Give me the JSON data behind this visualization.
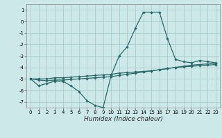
{
  "xlabel": "Humidex (Indice chaleur)",
  "xlim": [
    -0.5,
    23.5
  ],
  "ylim": [
    -7.5,
    1.5
  ],
  "yticks": [
    1,
    0,
    -1,
    -2,
    -3,
    -4,
    -5,
    -6,
    -7
  ],
  "xticks": [
    0,
    1,
    2,
    3,
    4,
    5,
    6,
    7,
    8,
    9,
    10,
    11,
    12,
    13,
    14,
    15,
    16,
    17,
    18,
    19,
    20,
    21,
    22,
    23
  ],
  "bg_color": "#cce8e8",
  "grid_color": "#aacccc",
  "line_color": "#2a6868",
  "line1_x": [
    0,
    1,
    2,
    3,
    4,
    5,
    6,
    7,
    8,
    9,
    10,
    11,
    12,
    13,
    14,
    15,
    16,
    17,
    18,
    19,
    20,
    21,
    22,
    23
  ],
  "line1_y": [
    -5.0,
    -5.6,
    -5.4,
    -5.2,
    -5.2,
    -5.6,
    -6.1,
    -6.9,
    -7.3,
    -7.5,
    -4.7,
    -3.0,
    -2.2,
    -0.6,
    0.8,
    0.8,
    0.8,
    -1.5,
    -3.3,
    -3.5,
    -3.6,
    -3.4,
    -3.5,
    -3.6
  ],
  "line2_x": [
    0,
    1,
    2,
    3,
    4,
    5,
    6,
    7,
    8,
    9,
    10,
    11,
    12,
    13,
    14,
    15,
    16,
    17,
    18,
    19,
    20,
    21,
    22,
    23
  ],
  "line2_y": [
    -5.0,
    -5.0,
    -5.0,
    -4.9,
    -4.9,
    -4.85,
    -4.8,
    -4.75,
    -4.7,
    -4.65,
    -4.6,
    -4.5,
    -4.45,
    -4.4,
    -4.35,
    -4.3,
    -4.2,
    -4.1,
    -4.0,
    -3.95,
    -3.9,
    -3.85,
    -3.8,
    -3.75
  ],
  "line3_x": [
    0,
    1,
    2,
    3,
    4,
    5,
    6,
    7,
    8,
    9,
    10,
    11,
    12,
    13,
    14,
    15,
    16,
    17,
    18,
    19,
    20,
    21,
    22,
    23
  ],
  "line3_y": [
    -5.0,
    -5.1,
    -5.15,
    -5.1,
    -5.1,
    -5.05,
    -5.0,
    -4.95,
    -4.9,
    -4.85,
    -4.8,
    -4.7,
    -4.6,
    -4.5,
    -4.4,
    -4.3,
    -4.2,
    -4.1,
    -4.0,
    -3.9,
    -3.8,
    -3.75,
    -3.7,
    -3.65
  ]
}
